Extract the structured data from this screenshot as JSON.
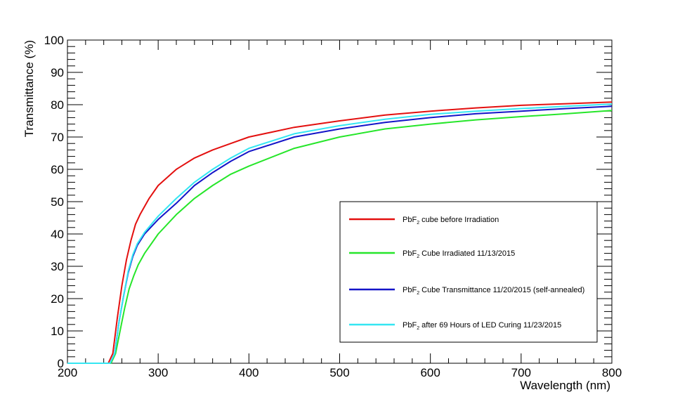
{
  "chart_data": {
    "type": "line",
    "xlabel": "Wavelength (nm)",
    "ylabel": "Transmittance (%)",
    "xlim": [
      200,
      800
    ],
    "ylim": [
      0,
      100
    ],
    "x_ticks": [
      200,
      300,
      400,
      500,
      600,
      700,
      800
    ],
    "y_ticks": [
      0,
      10,
      20,
      30,
      40,
      50,
      60,
      70,
      80,
      90,
      100
    ],
    "grid": false,
    "legend_position": "bottom-right",
    "series": [
      {
        "name": "PbF2 cube before Irradiation",
        "name_prefix": "PbF",
        "name_sub": "2",
        "name_suffix": " cube before Irradiation",
        "color": "#e3100f",
        "x": [
          200,
          245,
          250,
          255,
          260,
          265,
          270,
          275,
          280,
          290,
          300,
          320,
          340,
          360,
          380,
          400,
          450,
          500,
          550,
          600,
          650,
          700,
          750,
          800
        ],
        "y": [
          0,
          0,
          3,
          14,
          24,
          32,
          38,
          43,
          46,
          51,
          55,
          60,
          63.5,
          66,
          68,
          70,
          73,
          75,
          76.8,
          78,
          79,
          79.8,
          80.3,
          80.8
        ]
      },
      {
        "name": "PbF2 Cube Irradiated 11/13/2015",
        "name_prefix": "PbF",
        "name_sub": "2",
        "name_suffix": " Cube Irradiated 11/13/2015",
        "color": "#26e62a",
        "x": [
          200,
          248,
          253,
          258,
          263,
          268,
          273,
          278,
          285,
          300,
          320,
          340,
          360,
          380,
          400,
          450,
          500,
          550,
          600,
          650,
          700,
          750,
          800
        ],
        "y": [
          0,
          0,
          3,
          10,
          17,
          23,
          27,
          30.5,
          34,
          40,
          46,
          51,
          55,
          58.5,
          61,
          66.5,
          70,
          72.5,
          74,
          75.3,
          76.3,
          77.2,
          78.2
        ]
      },
      {
        "name": "PbF2 Cube Transmittance 11/20/2015 (self-annealed)",
        "name_prefix": "PbF",
        "name_sub": "2",
        "name_suffix": " Cube Transmittance 11/20/2015 (self-annealed)",
        "color": "#1414c8",
        "x": [
          200,
          247,
          252,
          257,
          262,
          267,
          272,
          277,
          285,
          300,
          320,
          340,
          360,
          380,
          400,
          450,
          500,
          550,
          600,
          650,
          700,
          750,
          800
        ],
        "y": [
          0,
          0,
          3,
          13,
          21,
          28,
          33,
          36.5,
          40,
          44.5,
          49.5,
          55,
          59,
          62.5,
          65.5,
          70,
          72.5,
          74.5,
          76,
          77.2,
          78,
          78.8,
          79.5
        ]
      },
      {
        "name": "PbF2 after 69 Hours of LED Curing 11/23/2015",
        "name_prefix": "PbF",
        "name_sub": "2",
        "name_suffix": " after 69 Hours of LED Curing 11/23/2015",
        "color": "#35e6f2",
        "x": [
          200,
          247,
          252,
          257,
          262,
          267,
          272,
          277,
          285,
          300,
          320,
          340,
          360,
          380,
          400,
          450,
          500,
          550,
          600,
          650,
          700,
          750,
          800
        ],
        "y": [
          0,
          0,
          3,
          13,
          21,
          28.5,
          33.5,
          37,
          40.5,
          45.5,
          51,
          56,
          60,
          63.5,
          66.5,
          71,
          73.5,
          75.5,
          77,
          78,
          78.8,
          79.5,
          80.2
        ]
      }
    ]
  }
}
